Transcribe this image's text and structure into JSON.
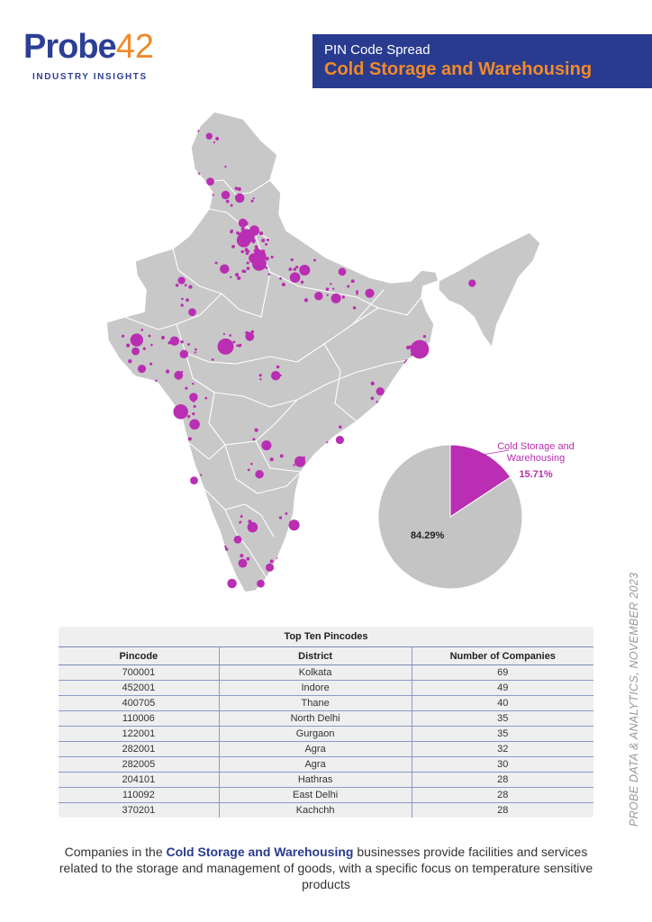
{
  "logo": {
    "word": "Probe",
    "number": "42",
    "tagline": "INDUSTRY INSIGHTS"
  },
  "header": {
    "subtitle": "PIN Code Spread",
    "title": "Cold Storage and Warehousing"
  },
  "colors": {
    "brand_blue": "#293b8f",
    "brand_orange": "#f08a2a",
    "marker": "#b92eb2",
    "land": "#c8c8c8",
    "border": "#ffffff"
  },
  "map": {
    "country": "India",
    "markers": [
      {
        "lat": 22.57,
        "lon": 88.36,
        "weight": 69
      },
      {
        "lat": 22.72,
        "lon": 75.86,
        "weight": 49
      },
      {
        "lat": 19.2,
        "lon": 72.97,
        "weight": 40
      },
      {
        "lat": 28.68,
        "lon": 77.2,
        "weight": 35
      },
      {
        "lat": 28.46,
        "lon": 77.03,
        "weight": 35
      },
      {
        "lat": 27.18,
        "lon": 78.01,
        "weight": 32
      },
      {
        "lat": 27.2,
        "lon": 78.06,
        "weight": 30
      },
      {
        "lat": 27.6,
        "lon": 78.05,
        "weight": 28
      },
      {
        "lat": 28.67,
        "lon": 77.31,
        "weight": 28
      },
      {
        "lat": 23.07,
        "lon": 70.13,
        "weight": 28
      },
      {
        "lat": 30.74,
        "lon": 76.77,
        "weight": 12
      },
      {
        "lat": 26.85,
        "lon": 80.95,
        "weight": 18
      },
      {
        "lat": 25.32,
        "lon": 82.97,
        "weight": 14
      },
      {
        "lat": 26.45,
        "lon": 80.33,
        "weight": 16
      },
      {
        "lat": 28.98,
        "lon": 77.71,
        "weight": 15
      },
      {
        "lat": 27.49,
        "lon": 77.67,
        "weight": 14
      },
      {
        "lat": 23.02,
        "lon": 72.57,
        "weight": 12
      },
      {
        "lat": 21.17,
        "lon": 72.83,
        "weight": 10
      },
      {
        "lat": 22.31,
        "lon": 73.18,
        "weight": 9
      },
      {
        "lat": 18.52,
        "lon": 73.86,
        "weight": 16
      },
      {
        "lat": 21.15,
        "lon": 79.09,
        "weight": 12
      },
      {
        "lat": 17.39,
        "lon": 78.49,
        "weight": 14
      },
      {
        "lat": 16.51,
        "lon": 80.65,
        "weight": 18
      },
      {
        "lat": 13.08,
        "lon": 80.27,
        "weight": 18
      },
      {
        "lat": 12.97,
        "lon": 77.59,
        "weight": 16
      },
      {
        "lat": 11.02,
        "lon": 76.96,
        "weight": 10
      },
      {
        "lat": 9.93,
        "lon": 76.27,
        "weight": 12
      },
      {
        "lat": 8.52,
        "lon": 76.94,
        "weight": 8
      },
      {
        "lat": 15.49,
        "lon": 73.83,
        "weight": 7
      },
      {
        "lat": 26.91,
        "lon": 75.79,
        "weight": 12
      },
      {
        "lat": 23.26,
        "lon": 77.41,
        "weight": 10
      },
      {
        "lat": 25.6,
        "lon": 85.14,
        "weight": 11
      },
      {
        "lat": 20.3,
        "lon": 85.82,
        "weight": 8
      },
      {
        "lat": 26.14,
        "lon": 91.74,
        "weight": 6
      },
      {
        "lat": 31.63,
        "lon": 74.87,
        "weight": 7
      },
      {
        "lat": 30.9,
        "lon": 75.86,
        "weight": 9
      },
      {
        "lat": 34.08,
        "lon": 74.8,
        "weight": 4
      },
      {
        "lat": 21.52,
        "lon": 70.46,
        "weight": 8
      },
      {
        "lat": 22.47,
        "lon": 70.06,
        "weight": 7
      },
      {
        "lat": 10.79,
        "lon": 78.7,
        "weight": 8
      },
      {
        "lat": 9.92,
        "lon": 78.12,
        "weight": 7
      },
      {
        "lat": 15.83,
        "lon": 78.04,
        "weight": 9
      },
      {
        "lat": 24.58,
        "lon": 73.71,
        "weight": 7
      },
      {
        "lat": 17.68,
        "lon": 83.22,
        "weight": 8
      },
      {
        "lat": 19.99,
        "lon": 73.79,
        "weight": 9
      },
      {
        "lat": 26.29,
        "lon": 73.02,
        "weight": 6
      },
      {
        "lat": 29.39,
        "lon": 76.97,
        "weight": 10
      },
      {
        "lat": 25.45,
        "lon": 81.85,
        "weight": 9
      },
      {
        "lat": 26.76,
        "lon": 83.37,
        "weight": 7
      },
      {
        "lat": 12.3,
        "lon": 76.64,
        "weight": 7
      }
    ]
  },
  "pie": {
    "slices": [
      {
        "label": "Cold Storage and Warehousing",
        "value": 15.71,
        "display": "15.71%",
        "color": "#b92eb2"
      },
      {
        "label": "",
        "value": 84.29,
        "display": "84.29%",
        "color": "#c4c4c4"
      }
    ]
  },
  "table": {
    "title": "Top Ten Pincodes",
    "headers": [
      "Pincode",
      "District",
      "Number of Companies"
    ],
    "rows": [
      [
        "700001",
        "Kolkata",
        "69"
      ],
      [
        "452001",
        "Indore",
        "49"
      ],
      [
        "400705",
        "Thane",
        "40"
      ],
      [
        "110006",
        "North Delhi",
        "35"
      ],
      [
        "122001",
        "Gurgaon",
        "35"
      ],
      [
        "282001",
        "Agra",
        "32"
      ],
      [
        "282005",
        "Agra",
        "30"
      ],
      [
        "204101",
        "Hathras",
        "28"
      ],
      [
        "110092",
        "East Delhi",
        "28"
      ],
      [
        "370201",
        "Kachchh",
        "28"
      ]
    ]
  },
  "side_text": "PROBE DATA & ANALYTICS, NOVEMBER 2023",
  "description": {
    "prefix": "Companies in the ",
    "highlight": "Cold Storage and Warehousing",
    "suffix": " businesses provide facilities and services related to the storage and management of goods, with a specific focus on temperature sensitive products"
  }
}
